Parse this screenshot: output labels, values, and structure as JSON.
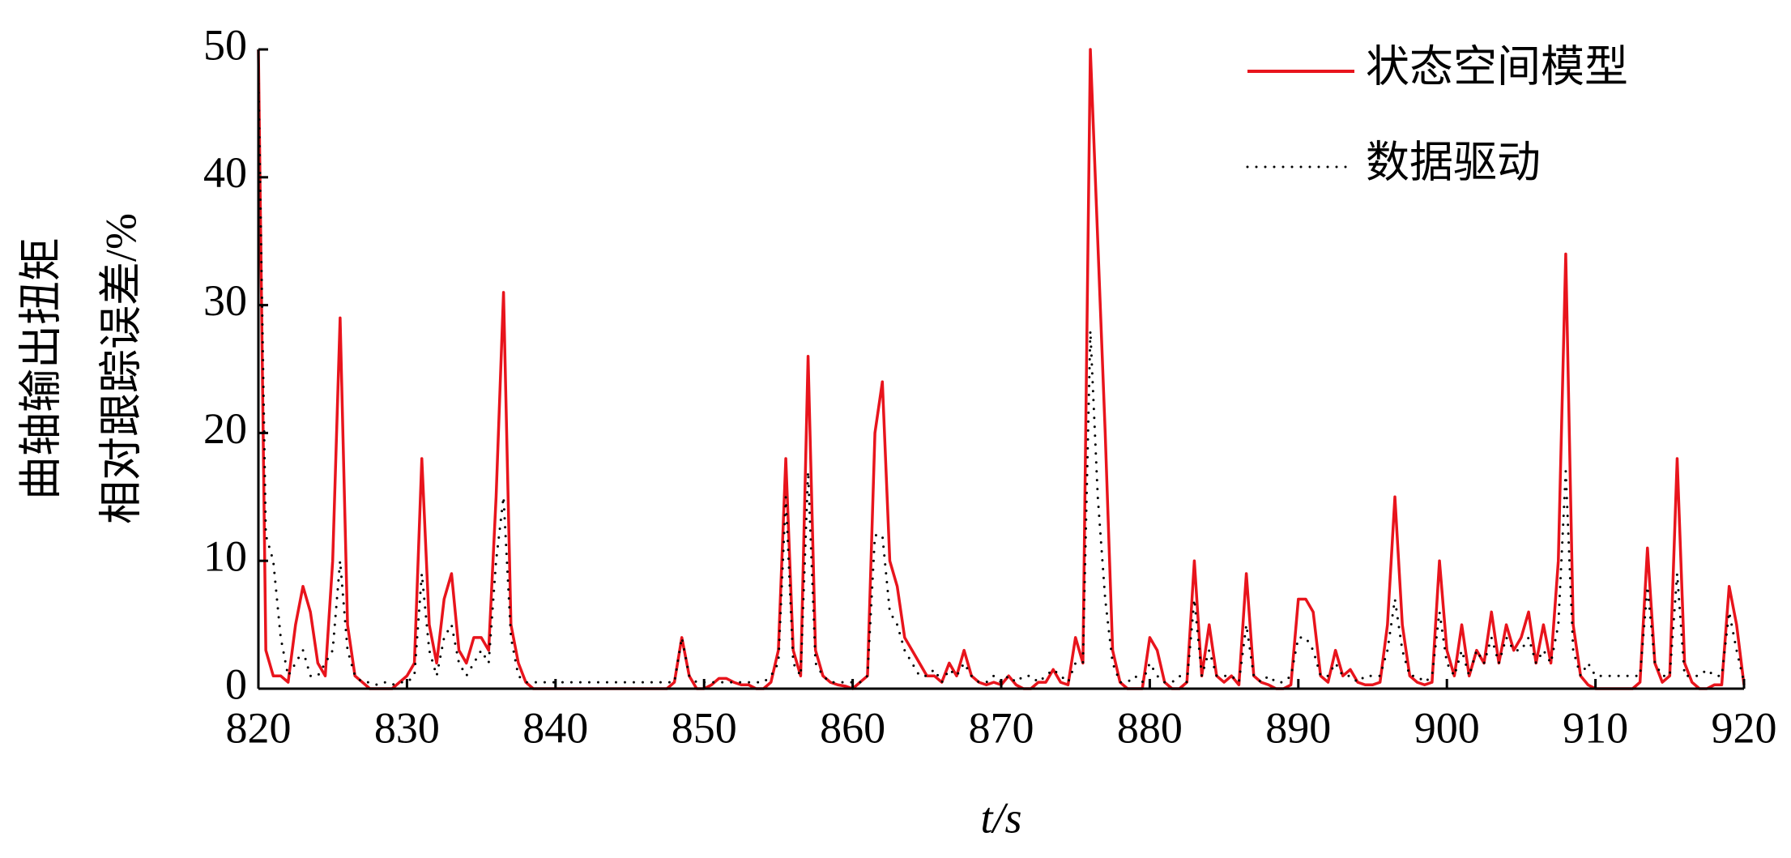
{
  "chart_data": {
    "type": "line",
    "xlabel": "t/s",
    "ylabel": [
      "曲轴输出扭矩",
      "相对跟踪误差/%"
    ],
    "xlim": [
      820,
      920
    ],
    "xticks": [
      820,
      830,
      840,
      850,
      860,
      870,
      880,
      890,
      900,
      910,
      920
    ],
    "ylim": [
      0,
      50
    ],
    "yticks": [
      0,
      10,
      20,
      30,
      40,
      50
    ],
    "legend": "upper right",
    "x": [
      820,
      820.5,
      821,
      821.5,
      822,
      822.5,
      823,
      823.5,
      824,
      824.5,
      825,
      825.5,
      826,
      826.5,
      827,
      827.5,
      828,
      828.5,
      829,
      829.5,
      830,
      830.5,
      831,
      831.5,
      832,
      832.5,
      833,
      833.5,
      834,
      834.5,
      835,
      835.5,
      836,
      836.5,
      837,
      837.5,
      838,
      838.5,
      839,
      839.5,
      840,
      840.5,
      841,
      841.5,
      842,
      842.5,
      843,
      843.5,
      844,
      844.5,
      845,
      845.5,
      846,
      846.5,
      847,
      847.5,
      848,
      848.5,
      849,
      849.5,
      850,
      850.5,
      851,
      851.5,
      852,
      852.5,
      853,
      853.5,
      854,
      854.5,
      855,
      855.5,
      856,
      856.5,
      857,
      857.5,
      858,
      858.5,
      859,
      859.5,
      860,
      860.5,
      861,
      861.5,
      862,
      862.5,
      863,
      863.5,
      864,
      864.5,
      865,
      865.5,
      866,
      866.5,
      867,
      867.5,
      868,
      868.5,
      869,
      869.5,
      870,
      870.5,
      871,
      871.5,
      872,
      872.5,
      873,
      873.5,
      874,
      874.5,
      875,
      875.5,
      876,
      876.5,
      877,
      877.5,
      878,
      878.5,
      879,
      879.5,
      880,
      880.5,
      881,
      881.5,
      882,
      882.5,
      883,
      883.5,
      884,
      884.5,
      885,
      885.5,
      886,
      886.5,
      887,
      887.5,
      888,
      888.5,
      889,
      889.5,
      890,
      890.5,
      891,
      891.5,
      892,
      892.5,
      893,
      893.5,
      894,
      894.5,
      895,
      895.5,
      896,
      896.5,
      897,
      897.5,
      898,
      898.5,
      899,
      899.5,
      900,
      900.5,
      901,
      901.5,
      902,
      902.5,
      903,
      903.5,
      904,
      904.5,
      905,
      905.5,
      906,
      906.5,
      907,
      907.5,
      908,
      908.5,
      909,
      909.5,
      910,
      910.5,
      911,
      911.5,
      912,
      912.5,
      913,
      913.5,
      914,
      914.5,
      915,
      915.5,
      916,
      916.5,
      917,
      917.5,
      918,
      918.5,
      919,
      919.5,
      920
    ],
    "series": [
      {
        "name": "状态空间模型",
        "color": "#e8141c",
        "style": "solid",
        "values": [
          50,
          3,
          1,
          1,
          0.5,
          5,
          8,
          6,
          2,
          1,
          10,
          29,
          5,
          1,
          0.5,
          0,
          0,
          0,
          0,
          0.5,
          1,
          2,
          18,
          5,
          2,
          7,
          9,
          3,
          2,
          4,
          4,
          3,
          15,
          31,
          5,
          2,
          0.5,
          0,
          0,
          0,
          0,
          0,
          0,
          0,
          0,
          0,
          0,
          0,
          0,
          0,
          0,
          0,
          0,
          0,
          0,
          0,
          0.5,
          4,
          1,
          0,
          0,
          0.3,
          0.8,
          0.8,
          0.5,
          0.3,
          0.3,
          0,
          0,
          0.5,
          3,
          18,
          3,
          1,
          26,
          3,
          1,
          0.5,
          0.3,
          0.2,
          0,
          0.5,
          1,
          20,
          24,
          10,
          8,
          4,
          3,
          2,
          1,
          1,
          0.5,
          2,
          1,
          3,
          1,
          0.5,
          0.3,
          0.5,
          0.3,
          1,
          0.3,
          0,
          0,
          0.5,
          0.5,
          1.5,
          0.5,
          0.3,
          4,
          2,
          50,
          35,
          20,
          3,
          0.5,
          0,
          0,
          0,
          4,
          3,
          0.5,
          0,
          0,
          0.5,
          10,
          1,
          5,
          1,
          0.5,
          1,
          0.3,
          9,
          1,
          0.5,
          0.3,
          0,
          0,
          0.3,
          7,
          7,
          6,
          1,
          0.5,
          3,
          1,
          1.5,
          0.5,
          0.3,
          0.3,
          0.5,
          5,
          15,
          5,
          1,
          0.5,
          0.3,
          0.5,
          10,
          3,
          1,
          5,
          1,
          3,
          2,
          6,
          2,
          5,
          3,
          4,
          6,
          2,
          5,
          2,
          10,
          34,
          5,
          1,
          0.3,
          0,
          0,
          0,
          0,
          0,
          0,
          0.5,
          11,
          2,
          0.5,
          1,
          18,
          2,
          0.5,
          0,
          0,
          0.3,
          0.3,
          8,
          5,
          0.3
        ]
      },
      {
        "name": "数据驱动",
        "color": "#000000",
        "style": "dotted",
        "values": [
          48,
          12,
          10,
          4,
          1,
          2,
          3,
          1,
          1,
          2,
          3,
          10,
          3,
          1,
          0.5,
          0.5,
          0.3,
          0.5,
          0.3,
          0.5,
          0.5,
          1,
          9,
          3,
          1,
          4,
          5,
          2,
          1,
          2,
          3,
          2,
          10,
          15,
          4,
          1,
          0.5,
          0.5,
          0.5,
          0.5,
          0.5,
          0.5,
          0.5,
          0.5,
          0.5,
          0.5,
          0.5,
          0.5,
          0.5,
          0.5,
          0.5,
          0.5,
          0.5,
          0.5,
          0.5,
          0.5,
          0.5,
          4,
          1,
          0.5,
          0.5,
          0.5,
          0.5,
          0.5,
          0.5,
          0.5,
          0.5,
          0.5,
          0.5,
          1,
          2,
          15,
          2,
          1,
          17,
          2,
          1,
          0.5,
          0.5,
          0.5,
          0.5,
          0.5,
          1,
          12,
          12,
          6,
          5,
          3,
          2,
          1,
          1,
          1.5,
          0.5,
          1.5,
          1,
          2,
          1,
          0.5,
          0.5,
          1,
          0.5,
          1,
          0.5,
          1,
          1,
          0.5,
          1,
          1.5,
          1,
          0.5,
          2,
          2,
          28,
          15,
          7,
          2,
          0.5,
          0.5,
          1,
          0.5,
          2,
          1,
          0.5,
          0.5,
          1,
          0.5,
          7,
          1,
          3,
          1,
          1,
          1,
          0.5,
          5,
          1,
          0.5,
          1,
          0.5,
          0.5,
          1,
          4,
          4,
          3,
          1,
          1,
          2,
          1,
          1,
          0.5,
          1,
          1,
          1,
          3,
          7,
          3,
          1,
          1,
          0.5,
          1,
          6,
          2,
          1,
          3,
          1,
          3,
          2,
          4,
          2,
          4,
          3,
          3,
          4,
          2,
          3,
          2,
          5,
          17,
          3,
          1,
          2,
          1,
          1,
          1,
          1,
          1,
          1,
          1,
          8,
          2,
          1,
          1,
          9,
          1,
          1,
          1,
          1.5,
          1,
          1,
          6,
          3,
          0.5
        ]
      }
    ]
  }
}
